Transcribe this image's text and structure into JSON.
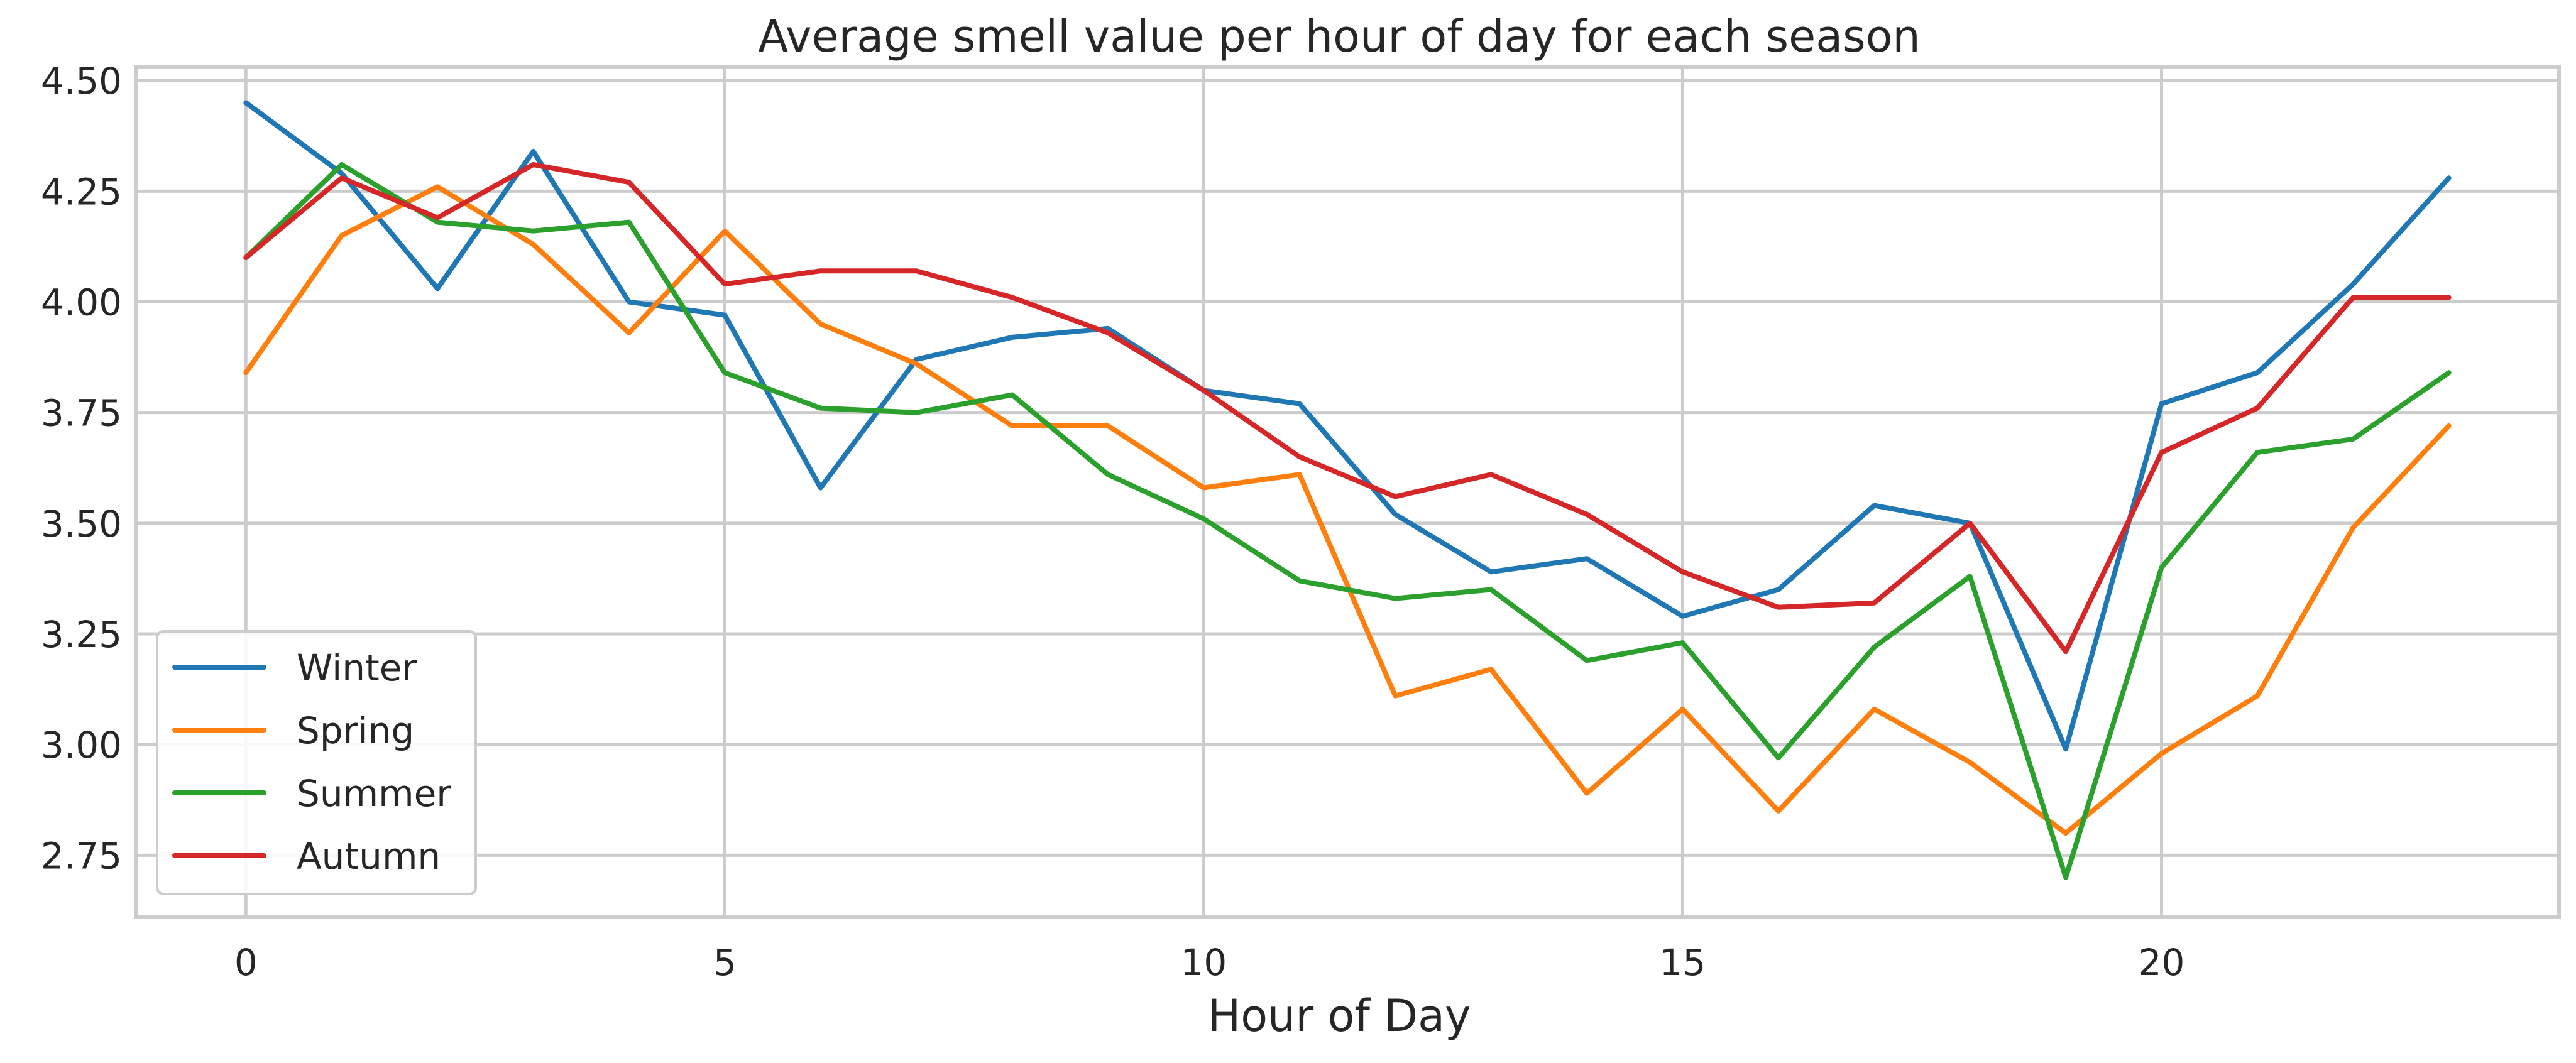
{
  "chart_data": {
    "type": "line",
    "title": "Average smell value per hour of day for each season",
    "xlabel": "Hour of Day",
    "ylabel": "",
    "xlim": [
      -1.15,
      24.15
    ],
    "ylim": [
      2.61,
      4.53
    ],
    "x_ticks": [
      0,
      5,
      10,
      15,
      20
    ],
    "y_ticks": [
      2.75,
      3.0,
      3.25,
      3.5,
      3.75,
      4.0,
      4.25,
      4.5
    ],
    "y_tick_labels": [
      "2.75",
      "3.00",
      "3.25",
      "3.50",
      "3.75",
      "4.00",
      "4.25",
      "4.50"
    ],
    "grid": true,
    "legend": "lower-left",
    "x": [
      0,
      1,
      2,
      3,
      4,
      5,
      6,
      7,
      8,
      9,
      10,
      11,
      12,
      13,
      14,
      15,
      16,
      17,
      18,
      19,
      20,
      21,
      22,
      23
    ],
    "series": [
      {
        "name": "Winter",
        "color": "#1f77b4",
        "values": [
          4.45,
          4.29,
          4.03,
          4.34,
          4.0,
          3.97,
          3.58,
          3.87,
          3.92,
          3.94,
          3.8,
          3.77,
          3.52,
          3.39,
          3.42,
          3.29,
          3.35,
          3.54,
          3.5,
          2.99,
          3.77,
          3.84,
          4.04,
          4.28
        ]
      },
      {
        "name": "Spring",
        "color": "#ff7f0e",
        "values": [
          3.84,
          4.15,
          4.26,
          4.13,
          3.93,
          4.16,
          3.95,
          3.86,
          3.72,
          3.72,
          3.58,
          3.61,
          3.11,
          3.17,
          2.89,
          3.08,
          2.85,
          3.08,
          2.96,
          2.8,
          2.98,
          3.11,
          3.49,
          3.72
        ]
      },
      {
        "name": "Summer",
        "color": "#2ca02c",
        "values": [
          4.1,
          4.31,
          4.18,
          4.16,
          4.18,
          3.84,
          3.76,
          3.75,
          3.79,
          3.61,
          3.51,
          3.37,
          3.33,
          3.35,
          3.19,
          3.23,
          2.97,
          3.22,
          3.38,
          2.7,
          3.4,
          3.66,
          3.69,
          3.84
        ]
      },
      {
        "name": "Autumn",
        "color": "#d62728",
        "values": [
          4.1,
          4.28,
          4.19,
          4.31,
          4.27,
          4.04,
          4.07,
          4.07,
          4.01,
          3.93,
          3.8,
          3.65,
          3.56,
          3.61,
          3.52,
          3.39,
          3.31,
          3.32,
          3.5,
          3.21,
          3.66,
          3.76,
          4.01,
          4.01
        ]
      }
    ]
  }
}
